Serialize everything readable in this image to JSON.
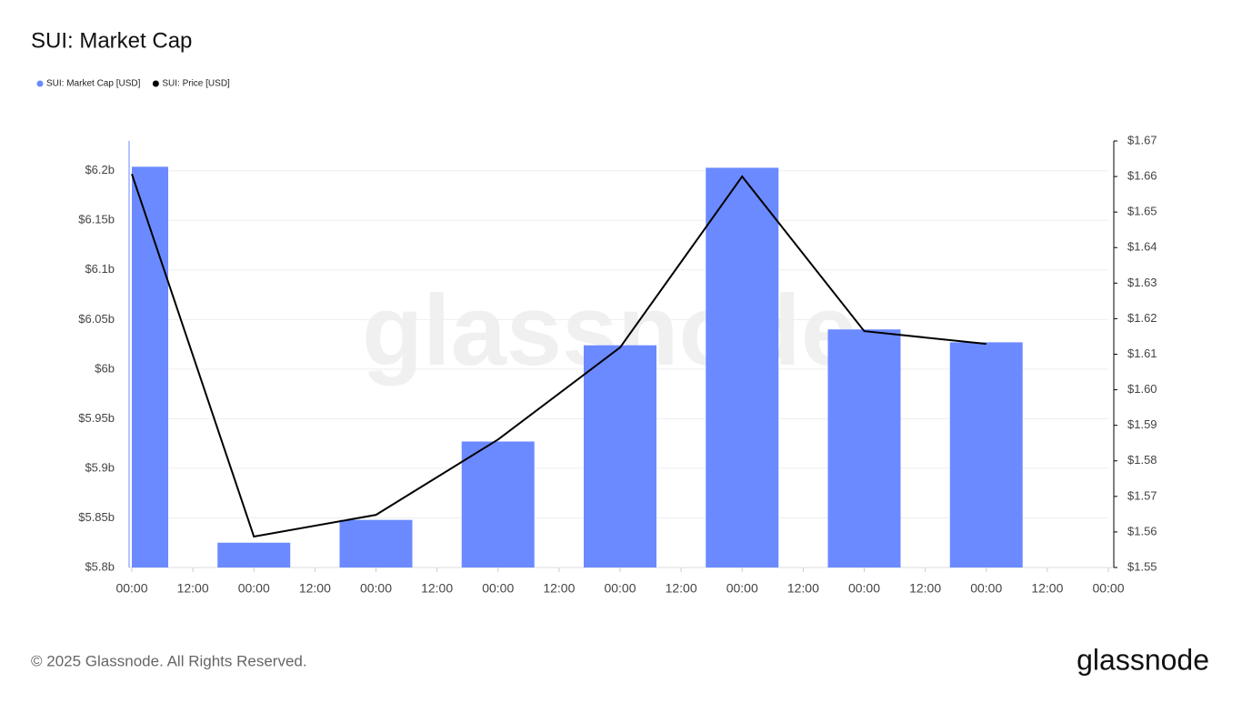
{
  "chart_data": {
    "type": "bar-line",
    "title": "SUI: Market Cap",
    "watermark": "glassnode",
    "footer": "© 2025 Glassnode. All Rights Reserved.",
    "logo": "glassnode",
    "x": [
      0,
      24,
      48,
      72,
      96,
      120,
      144,
      168
    ],
    "xlim": [
      0,
      192
    ],
    "xticks": [
      {
        "value": 0,
        "label": "00:00"
      },
      {
        "value": 12,
        "label": "12:00"
      },
      {
        "value": 24,
        "label": "00:00"
      },
      {
        "value": 36,
        "label": "12:00"
      },
      {
        "value": 48,
        "label": "00:00"
      },
      {
        "value": 60,
        "label": "12:00"
      },
      {
        "value": 72,
        "label": "00:00"
      },
      {
        "value": 84,
        "label": "12:00"
      },
      {
        "value": 96,
        "label": "00:00"
      },
      {
        "value": 108,
        "label": "12:00"
      },
      {
        "value": 120,
        "label": "00:00"
      },
      {
        "value": 132,
        "label": "12:00"
      },
      {
        "value": 144,
        "label": "00:00"
      },
      {
        "value": 156,
        "label": "12:00"
      },
      {
        "value": 168,
        "label": "00:00"
      },
      {
        "value": 180,
        "label": "12:00"
      },
      {
        "value": 192,
        "label": "00:00"
      }
    ],
    "ylim": [
      5.8,
      6.23
    ],
    "yticks": [
      {
        "value": 5.8,
        "label": "$5.8b"
      },
      {
        "value": 5.85,
        "label": "$5.85b"
      },
      {
        "value": 5.9,
        "label": "$5.9b"
      },
      {
        "value": 5.95,
        "label": "$5.95b"
      },
      {
        "value": 6,
        "label": "$6b"
      },
      {
        "value": 6.05,
        "label": "$6.05b"
      },
      {
        "value": 6.1,
        "label": "$6.1b"
      },
      {
        "value": 6.15,
        "label": "$6.15b"
      },
      {
        "value": 6.2,
        "label": "$6.2b"
      }
    ],
    "y2lim": [
      1.55,
      1.67
    ],
    "y2ticks": [
      {
        "value": 1.55,
        "label": "$1.55"
      },
      {
        "value": 1.56,
        "label": "$1.56"
      },
      {
        "value": 1.57,
        "label": "$1.57"
      },
      {
        "value": 1.58,
        "label": "$1.58"
      },
      {
        "value": 1.59,
        "label": "$1.59"
      },
      {
        "value": 1.6,
        "label": "$1.60"
      },
      {
        "value": 1.61,
        "label": "$1.61"
      },
      {
        "value": 1.62,
        "label": "$1.62"
      },
      {
        "value": 1.63,
        "label": "$1.63"
      },
      {
        "value": 1.64,
        "label": "$1.64"
      },
      {
        "value": 1.65,
        "label": "$1.65"
      },
      {
        "value": 1.66,
        "label": "$1.66"
      },
      {
        "value": 1.67,
        "label": "$1.67"
      }
    ],
    "grid": true,
    "series": [
      {
        "name": "SUI: Market Cap [USD]",
        "color": "#6b8aff",
        "kind": "bar",
        "values": [
          6.204,
          5.825,
          5.848,
          5.927,
          6.024,
          6.203,
          6.04,
          6.027
        ]
      },
      {
        "name": "SUI: Price [USD]",
        "color": "#000000",
        "kind": "line",
        "axis": "y2",
        "values": [
          1.6607,
          1.5587,
          1.5648,
          1.586,
          1.6119,
          1.66,
          1.6165,
          1.6129
        ]
      }
    ]
  }
}
